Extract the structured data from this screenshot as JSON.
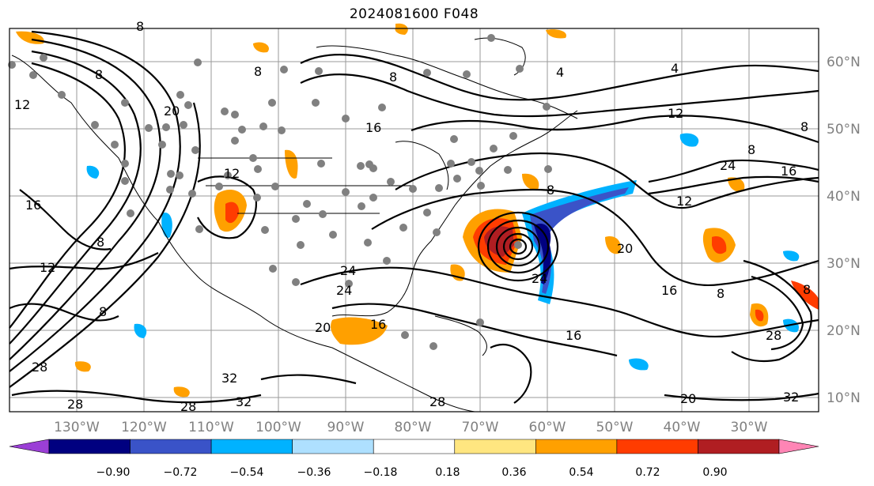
{
  "title": "2024081600 F048",
  "map": {
    "projection": "lat-lon",
    "lon_ticks": [
      "130°W",
      "120°W",
      "110°W",
      "100°W",
      "90°W",
      "80°W",
      "70°W",
      "60°W",
      "50°W",
      "40°W",
      "30°W"
    ],
    "lat_ticks": [
      "60°N",
      "50°N",
      "40°N",
      "30°N",
      "20°N",
      "10°N"
    ],
    "contour_labels": [
      "8",
      "8",
      "8",
      "4",
      "4",
      "8",
      "12",
      "12",
      "16",
      "20",
      "12",
      "8",
      "8",
      "12",
      "16",
      "16",
      "24",
      "24",
      "12",
      "8",
      "16",
      "24",
      "24",
      "20",
      "8",
      "8",
      "20",
      "16",
      "28",
      "28",
      "28",
      "32",
      "32",
      "28",
      "8",
      "8",
      "20",
      "32",
      "16",
      "28"
    ],
    "station_marker_color": "#808080"
  },
  "colorbar": {
    "tick_labels": [
      "−0.90",
      "−0.72",
      "−0.54",
      "−0.36",
      "−0.18",
      "0.18",
      "0.36",
      "0.54",
      "0.72",
      "0.90"
    ],
    "bins": [
      {
        "color": "#9b3fd6"
      },
      {
        "color": "#000080"
      },
      {
        "color": "#3a53c8"
      },
      {
        "color": "#00b2ff"
      },
      {
        "color": "#aee0ff"
      },
      {
        "color": "#ffffff"
      },
      {
        "color": "#ffe680"
      },
      {
        "color": "#ffa000"
      },
      {
        "color": "#ff3c00"
      },
      {
        "color": "#b01e22"
      },
      {
        "color": "#ff85b5"
      }
    ]
  }
}
